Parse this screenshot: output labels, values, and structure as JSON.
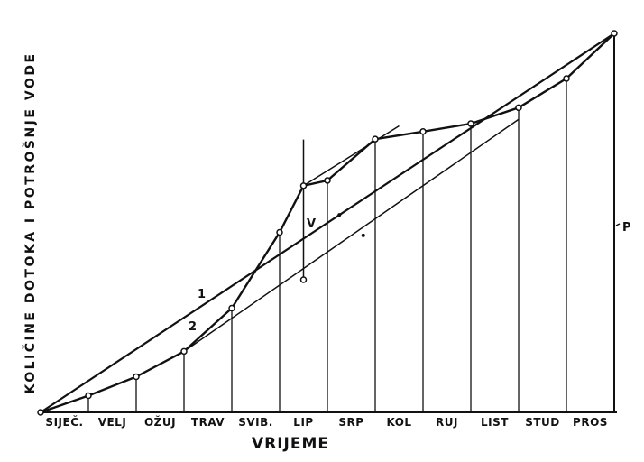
{
  "chart_data": {
    "type": "line",
    "xlabel": "VRIJEME",
    "ylabel": "KOLIČINE DOTOKA I POTROŠNJE VODE",
    "categories": [
      "SIJEČ.",
      "VELJ",
      "OŽUJ",
      "TRAV",
      "SVIB.",
      "LIP",
      "SRP",
      "KOL",
      "RUJ",
      "LIST",
      "STUD",
      "PROS"
    ],
    "x_month_end": [
      0,
      1,
      2,
      3,
      4,
      5,
      6,
      7,
      8,
      9,
      10,
      11,
      12
    ],
    "series": [
      {
        "name": "1",
        "description": "",
        "points": [
          [
            0,
            0
          ],
          [
            12,
            100
          ]
        ]
      },
      {
        "name": "",
        "description": "",
        "points": [
          [
            0,
            0
          ],
          [
            1,
            4.4
          ],
          [
            2,
            9.4
          ],
          [
            3,
            16.1
          ],
          [
            4,
            27.5
          ],
          [
            5,
            47.5
          ],
          [
            5.5,
            59.8
          ],
          [
            6,
            61.2
          ],
          [
            7,
            72.1
          ],
          [
            8,
            74.1
          ],
          [
            9,
            76.2
          ],
          [
            10,
            80.4
          ],
          [
            11,
            88.1
          ],
          [
            12,
            100
          ]
        ]
      },
      {
        "name": "2",
        "description": "",
        "points": [
          [
            3,
            16.1
          ],
          [
            10,
            77.3
          ]
        ]
      },
      {
        "name": "",
        "description": "",
        "points": [
          [
            5.5,
            59.8
          ],
          [
            7.5,
            75.6
          ]
        ]
      }
    ],
    "markers": [
      [
        6.25,
        52.1
      ],
      [
        6.75,
        46.7
      ]
    ],
    "annotations": [
      {
        "text": "V",
        "description": ""
      },
      {
        "text": "P",
        "description": ""
      },
      {
        "text": "1",
        "description": ""
      },
      {
        "text": "2",
        "description": ""
      }
    ],
    "xlim": [
      0,
      12
    ],
    "ylim": [
      0,
      100
    ],
    "grid": false
  }
}
